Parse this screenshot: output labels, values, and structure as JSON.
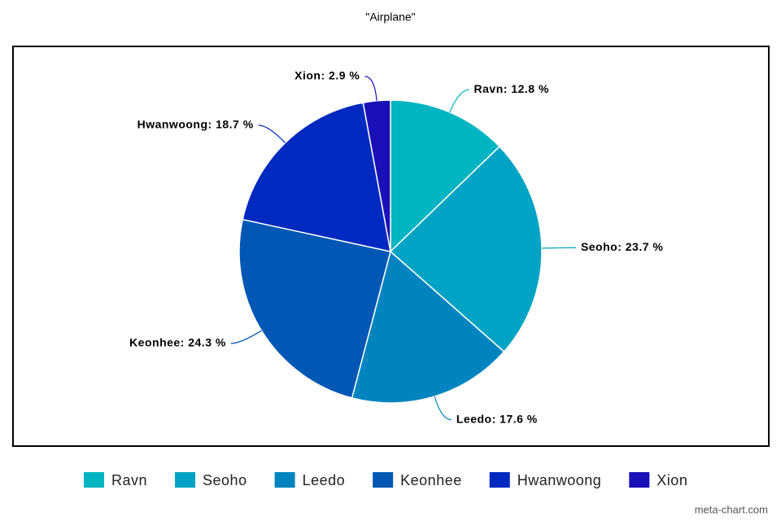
{
  "chart_data": {
    "type": "pie",
    "title": "\"Airplane\"",
    "categories": [
      "Ravn",
      "Seoho",
      "Leedo",
      "Keonhee",
      "Hwanwoong",
      "Xion"
    ],
    "values": [
      12.8,
      23.7,
      17.6,
      24.3,
      18.7,
      2.9
    ],
    "value_labels": [
      "Ravn: 12.8 %",
      "Seoho: 23.7 %",
      "Leedo: 17.6 %",
      "Keonhee: 24.3 %",
      "Hwanwoong: 18.7 %",
      "Xion: 2.9 %"
    ],
    "colors": [
      "#00b5c1",
      "#00a3c3",
      "#0084c0",
      "#0057b4",
      "#0029c0",
      "#1a10b8"
    ],
    "watermark": "meta-chart.com"
  }
}
